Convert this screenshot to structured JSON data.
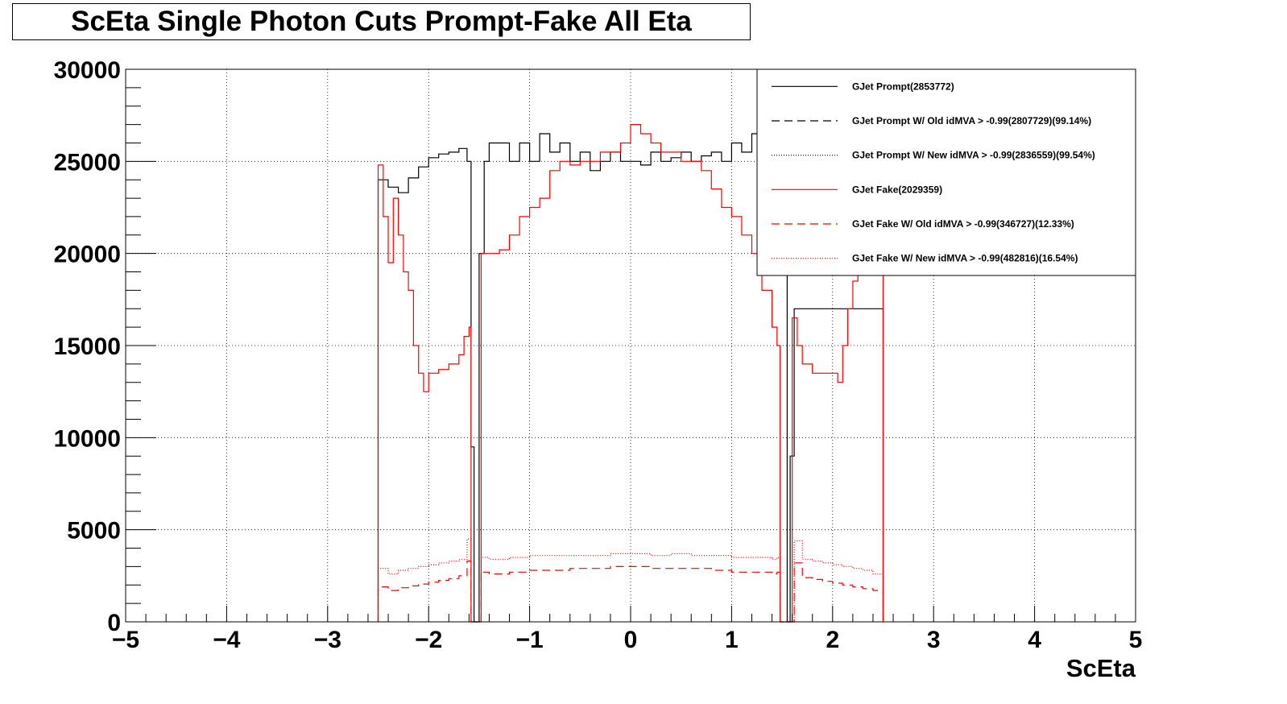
{
  "chart_data": {
    "type": "histogram",
    "title": "ScEta Single Photon Cuts Prompt-Fake All Eta",
    "xlabel": "ScEta",
    "ylabel": "",
    "xlim": [
      -5,
      5
    ],
    "ylim": [
      0,
      30000
    ],
    "x_ticks": [
      "−5",
      "−4",
      "−3",
      "−2",
      "−1",
      "0",
      "1",
      "2",
      "3",
      "4",
      "5"
    ],
    "y_ticks": [
      "0",
      "5000",
      "10000",
      "15000",
      "20000",
      "25000",
      "30000"
    ],
    "grid": true,
    "legend_position": "top-right",
    "series": [
      {
        "name": "GJet Prompt(2853772)",
        "color": "#000000",
        "line_style": "solid",
        "points": [
          [
            -2.5,
            24000
          ],
          [
            -2.4,
            23600
          ],
          [
            -2.3,
            23300
          ],
          [
            -2.2,
            24100
          ],
          [
            -2.1,
            24700
          ],
          [
            -2.0,
            25200
          ],
          [
            -1.9,
            25400
          ],
          [
            -1.8,
            25500
          ],
          [
            -1.7,
            25700
          ],
          [
            -1.62,
            25000
          ],
          [
            -1.58,
            9500
          ],
          [
            -1.55,
            0
          ],
          [
            -1.5,
            20000
          ],
          [
            -1.45,
            25000
          ],
          [
            -1.4,
            26000
          ],
          [
            -1.3,
            26000
          ],
          [
            -1.2,
            25000
          ],
          [
            -1.1,
            26000
          ],
          [
            -1.0,
            25000
          ],
          [
            -0.9,
            26500
          ],
          [
            -0.8,
            25500
          ],
          [
            -0.7,
            26000
          ],
          [
            -0.6,
            25000
          ],
          [
            -0.5,
            25500
          ],
          [
            -0.4,
            24500
          ],
          [
            -0.3,
            25000
          ],
          [
            -0.2,
            25500
          ],
          [
            -0.1,
            25000
          ],
          [
            0.0,
            25000
          ],
          [
            0.1,
            24800
          ],
          [
            0.2,
            25500
          ],
          [
            0.3,
            25000
          ],
          [
            0.4,
            25200
          ],
          [
            0.5,
            25500
          ],
          [
            0.6,
            25000
          ],
          [
            0.7,
            25300
          ],
          [
            0.8,
            25500
          ],
          [
            0.9,
            25000
          ],
          [
            1.0,
            26000
          ],
          [
            1.1,
            25500
          ],
          [
            1.2,
            26500
          ],
          [
            1.3,
            25500
          ],
          [
            1.4,
            25000
          ],
          [
            1.45,
            24000
          ],
          [
            1.5,
            20000
          ],
          [
            1.55,
            0
          ],
          [
            1.58,
            9000
          ],
          [
            1.62,
            17000
          ],
          [
            2.5,
            17000
          ]
        ]
      },
      {
        "name": "GJet Prompt W/ Old idMVA > -0.99(2807729)(99.14%)",
        "color": "#000000",
        "line_style": "dashed",
        "points": []
      },
      {
        "name": "GJet Prompt W/ New idMVA > -0.99(2836559)(99.54%)",
        "color": "#000000",
        "line_style": "dotted",
        "points": []
      },
      {
        "name": "GJet Fake(2029359)",
        "color": "#ff0000",
        "line_style": "solid",
        "points": [
          [
            -2.5,
            24800
          ],
          [
            -2.45,
            22000
          ],
          [
            -2.4,
            19500
          ],
          [
            -2.35,
            23000
          ],
          [
            -2.3,
            21000
          ],
          [
            -2.25,
            19000
          ],
          [
            -2.2,
            18000
          ],
          [
            -2.15,
            15000
          ],
          [
            -2.1,
            13500
          ],
          [
            -2.05,
            12500
          ],
          [
            -2.0,
            13500
          ],
          [
            -1.9,
            13700
          ],
          [
            -1.8,
            14000
          ],
          [
            -1.7,
            14500
          ],
          [
            -1.65,
            15500
          ],
          [
            -1.6,
            16000
          ],
          [
            -1.58,
            0
          ],
          [
            -1.5,
            0
          ],
          [
            -1.48,
            20000
          ],
          [
            -1.4,
            20000
          ],
          [
            -1.3,
            20200
          ],
          [
            -1.2,
            21000
          ],
          [
            -1.1,
            22000
          ],
          [
            -1.0,
            22500
          ],
          [
            -0.9,
            23000
          ],
          [
            -0.8,
            24500
          ],
          [
            -0.7,
            25000
          ],
          [
            -0.6,
            24800
          ],
          [
            -0.5,
            25000
          ],
          [
            -0.4,
            25000
          ],
          [
            -0.3,
            25500
          ],
          [
            -0.2,
            25500
          ],
          [
            -0.1,
            26000
          ],
          [
            0.0,
            27000
          ],
          [
            0.1,
            26500
          ],
          [
            0.2,
            26000
          ],
          [
            0.3,
            25500
          ],
          [
            0.4,
            25500
          ],
          [
            0.5,
            25000
          ],
          [
            0.6,
            25000
          ],
          [
            0.7,
            24500
          ],
          [
            0.8,
            23500
          ],
          [
            0.9,
            22500
          ],
          [
            1.0,
            22000
          ],
          [
            1.1,
            21000
          ],
          [
            1.2,
            20000
          ],
          [
            1.3,
            18000
          ],
          [
            1.4,
            16000
          ],
          [
            1.45,
            15000
          ],
          [
            1.48,
            0
          ],
          [
            1.58,
            0
          ],
          [
            1.6,
            16500
          ],
          [
            1.65,
            15000
          ],
          [
            1.7,
            14000
          ],
          [
            1.8,
            13500
          ],
          [
            1.9,
            13500
          ],
          [
            2.0,
            13500
          ],
          [
            2.05,
            13000
          ],
          [
            2.1,
            15000
          ],
          [
            2.15,
            17000
          ],
          [
            2.2,
            18500
          ],
          [
            2.25,
            19500
          ],
          [
            2.3,
            19000
          ],
          [
            2.35,
            20000
          ],
          [
            2.4,
            20000
          ],
          [
            2.45,
            20500
          ],
          [
            2.5,
            20500
          ]
        ]
      },
      {
        "name": "GJet Fake W/ Old idMVA > -0.99(346727)(12.33%)",
        "color": "#ff0000",
        "line_style": "dashed",
        "points": [
          [
            -2.5,
            1900
          ],
          [
            -2.4,
            1700
          ],
          [
            -2.3,
            1850
          ],
          [
            -2.2,
            1950
          ],
          [
            -2.1,
            2050
          ],
          [
            -2.0,
            2150
          ],
          [
            -1.9,
            2250
          ],
          [
            -1.8,
            2350
          ],
          [
            -1.7,
            2500
          ],
          [
            -1.62,
            3300
          ],
          [
            -1.58,
            0
          ],
          [
            -1.5,
            0
          ],
          [
            -1.48,
            2700
          ],
          [
            -1.4,
            2600
          ],
          [
            -1.2,
            2700
          ],
          [
            -1.0,
            2800
          ],
          [
            -0.8,
            2800
          ],
          [
            -0.6,
            2900
          ],
          [
            -0.4,
            2900
          ],
          [
            -0.2,
            3000
          ],
          [
            0.0,
            3000
          ],
          [
            0.2,
            2900
          ],
          [
            0.4,
            2900
          ],
          [
            0.6,
            2900
          ],
          [
            0.8,
            2800
          ],
          [
            1.0,
            2700
          ],
          [
            1.2,
            2700
          ],
          [
            1.4,
            2600
          ],
          [
            1.45,
            2700
          ],
          [
            1.48,
            0
          ],
          [
            1.58,
            0
          ],
          [
            1.62,
            3200
          ],
          [
            1.7,
            2400
          ],
          [
            1.8,
            2300
          ],
          [
            1.9,
            2200
          ],
          [
            2.0,
            2100
          ],
          [
            2.1,
            2000
          ],
          [
            2.2,
            1900
          ],
          [
            2.3,
            1800
          ],
          [
            2.4,
            1700
          ],
          [
            2.5,
            1800
          ]
        ]
      },
      {
        "name": "GJet Fake W/ New idMVA > -0.99(482816)(16.54%)",
        "color": "#ff0000",
        "line_style": "dotted",
        "points": [
          [
            -2.5,
            2900
          ],
          [
            -2.4,
            2600
          ],
          [
            -2.3,
            2800
          ],
          [
            -2.2,
            2900
          ],
          [
            -2.1,
            3000
          ],
          [
            -2.0,
            3100
          ],
          [
            -1.9,
            3200
          ],
          [
            -1.8,
            3300
          ],
          [
            -1.7,
            3400
          ],
          [
            -1.62,
            4500
          ],
          [
            -1.58,
            0
          ],
          [
            -1.5,
            0
          ],
          [
            -1.48,
            3500
          ],
          [
            -1.4,
            3400
          ],
          [
            -1.2,
            3500
          ],
          [
            -1.0,
            3600
          ],
          [
            -0.8,
            3600
          ],
          [
            -0.6,
            3600
          ],
          [
            -0.4,
            3600
          ],
          [
            -0.2,
            3700
          ],
          [
            0.0,
            3700
          ],
          [
            0.2,
            3600
          ],
          [
            0.4,
            3700
          ],
          [
            0.6,
            3600
          ],
          [
            0.8,
            3600
          ],
          [
            1.0,
            3500
          ],
          [
            1.2,
            3500
          ],
          [
            1.4,
            3400
          ],
          [
            1.45,
            3500
          ],
          [
            1.48,
            0
          ],
          [
            1.58,
            0
          ],
          [
            1.62,
            4400
          ],
          [
            1.7,
            3400
          ],
          [
            1.8,
            3300
          ],
          [
            1.9,
            3200
          ],
          [
            2.0,
            3100
          ],
          [
            2.1,
            3000
          ],
          [
            2.2,
            2900
          ],
          [
            2.3,
            2800
          ],
          [
            2.4,
            2600
          ],
          [
            2.5,
            2800
          ]
        ]
      }
    ]
  }
}
